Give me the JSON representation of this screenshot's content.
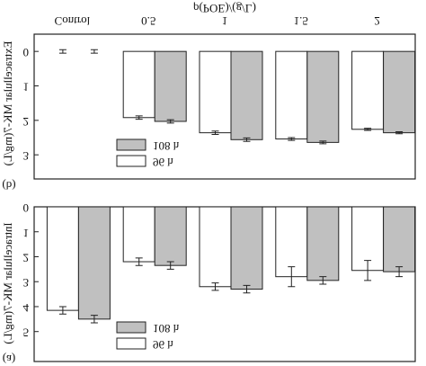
{
  "chart_data": [
    {
      "type": "bar",
      "panel_label": "(a)",
      "y_label": "Intracellular MK-7(mg/L)",
      "ylim": [
        0,
        6.2
      ],
      "yticks": [
        0,
        1,
        2,
        3,
        4,
        5
      ],
      "legend": "bottom-left",
      "series": [
        {
          "name": "96 h",
          "color": "#ffffff",
          "values": [
            4.15,
            2.2,
            3.2,
            2.8,
            2.55
          ],
          "errors": [
            0.15,
            0.15,
            0.15,
            0.4,
            0.4
          ]
        },
        {
          "name": "108 h",
          "color": "#c0c0c0",
          "values": [
            4.5,
            2.35,
            3.3,
            2.95,
            2.6
          ],
          "errors": [
            0.15,
            0.15,
            0.15,
            0.15,
            0.2
          ]
        }
      ]
    },
    {
      "type": "bar",
      "panel_label": "(b)",
      "y_label": "Extracellular MK-7(mg/L)",
      "x_label": "ρ(POE)/(g/L)",
      "categories": [
        "Control",
        "0.5",
        "1",
        "1.5",
        "2"
      ],
      "ylim": [
        -0.5,
        3.7
      ],
      "yticks": [
        0,
        1,
        2,
        3
      ],
      "legend": "bottom-left",
      "series": [
        {
          "name": "96 h",
          "color": "#ffffff",
          "values": [
            0.0,
            1.92,
            2.36,
            2.54,
            2.26
          ],
          "errors": [
            0.05,
            0.05,
            0.05,
            0.04,
            0.03
          ]
        },
        {
          "name": "108 h",
          "color": "#c0c0c0",
          "values": [
            0.0,
            2.03,
            2.56,
            2.64,
            2.36
          ],
          "errors": [
            0.05,
            0.05,
            0.05,
            0.04,
            0.03
          ]
        }
      ]
    }
  ]
}
